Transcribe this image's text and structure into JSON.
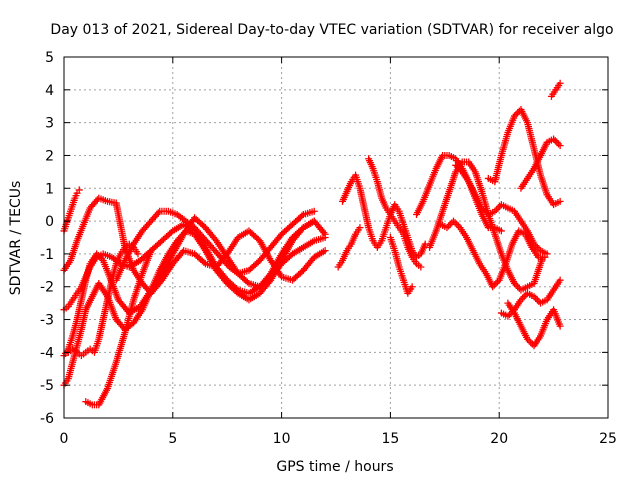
{
  "chart_data": {
    "type": "scatter",
    "title": "Day 013 of 2021, Sidereal Day-to-day VTEC variation (SDTVAR) for receiver algo",
    "xlabel": "GPS time / hours",
    "ylabel": "SDTVAR / TECUs",
    "xlim": [
      0,
      25
    ],
    "ylim": [
      -6,
      5
    ],
    "xticks": [
      0,
      5,
      10,
      15,
      20,
      25
    ],
    "yticks": [
      -6,
      -5,
      -4,
      -3,
      -2,
      -1,
      0,
      1,
      2,
      3,
      4,
      5
    ],
    "grid": true,
    "legend": "none",
    "marker": "+",
    "color": "#ff0000",
    "series": [
      {
        "x": [
          0.0,
          0.2,
          0.4,
          0.6,
          0.8,
          1.0,
          1.2,
          1.5,
          1.8,
          2.2,
          2.6,
          3.0,
          3.5,
          4.0,
          4.5,
          5.0,
          5.5,
          6.0,
          6.5,
          7.0,
          7.5,
          8.0,
          8.5,
          9.0,
          9.5,
          10.0,
          10.5,
          11.0,
          11.5,
          12.0
        ],
        "y": [
          -2.7,
          -2.6,
          -2.4,
          -2.2,
          -2.0,
          -1.7,
          -1.4,
          -1.1,
          -1.0,
          -1.1,
          -1.3,
          -1.4,
          -1.2,
          -0.9,
          -0.6,
          -0.3,
          -0.1,
          -0.3,
          -0.8,
          -1.4,
          -1.8,
          -2.1,
          -2.2,
          -2.0,
          -1.7,
          -1.3,
          -1.0,
          -0.8,
          -0.6,
          -0.5
        ]
      },
      {
        "x": [
          0.0,
          0.3,
          0.6,
          0.9,
          1.2,
          1.6,
          2.0,
          2.4,
          2.8,
          3.2,
          3.6,
          4.0,
          4.5,
          5.0,
          5.5,
          6.0,
          6.5,
          7.0,
          7.5,
          8.0,
          8.5,
          9.0,
          9.5,
          10.0,
          10.5,
          11.0,
          11.5,
          12.0
        ],
        "y": [
          -1.5,
          -1.2,
          -0.6,
          -0.1,
          0.4,
          0.7,
          0.6,
          0.55,
          -0.8,
          -1.5,
          -1.9,
          -2.2,
          -1.8,
          -1.3,
          -0.9,
          -1.0,
          -1.3,
          -1.4,
          -1.0,
          -0.5,
          -0.3,
          -0.6,
          -1.2,
          -1.7,
          -1.8,
          -1.5,
          -1.1,
          -0.9
        ]
      },
      {
        "x": [
          0.0,
          0.2,
          0.4,
          0.6,
          0.8,
          1.0,
          1.2,
          1.5,
          1.8,
          2.1,
          2.5,
          3.0,
          3.5,
          4.0,
          4.5,
          5.0,
          5.5,
          6.0,
          6.5,
          7.0,
          7.5,
          8.0,
          8.5,
          9.0,
          9.5,
          10.0,
          10.5,
          11.0,
          11.5,
          12.0
        ],
        "y": [
          -4.1,
          -3.9,
          -3.5,
          -3.0,
          -2.4,
          -1.8,
          -1.3,
          -1.0,
          -1.2,
          -1.7,
          -2.4,
          -2.8,
          -2.6,
          -2.1,
          -1.6,
          -1.0,
          -0.4,
          0.1,
          -0.2,
          -0.6,
          -1.1,
          -1.6,
          -1.9,
          -2.0,
          -1.6,
          -1.0,
          -0.5,
          -0.2,
          0.0,
          -0.4
        ]
      },
      {
        "x": [
          0.0,
          0.2,
          0.4,
          0.6,
          0.8,
          1.0,
          1.3,
          1.6,
          2.0,
          2.4,
          2.8,
          3.2,
          3.6,
          4.0,
          4.4,
          4.8,
          5.2,
          5.6,
          6.0,
          6.5,
          7.0,
          7.5,
          8.0,
          8.5,
          9.0,
          9.5,
          10.0,
          10.5,
          11.0,
          11.5
        ],
        "y": [
          -5.0,
          -4.8,
          -4.3,
          -3.8,
          -3.3,
          -2.7,
          -2.3,
          -1.9,
          -2.3,
          -3.0,
          -3.3,
          -3.1,
          -2.7,
          -2.1,
          -1.5,
          -1.0,
          -0.6,
          -0.3,
          -0.4,
          -0.9,
          -1.5,
          -1.9,
          -2.2,
          -2.4,
          -2.2,
          -1.8,
          -1.2,
          -0.6,
          -0.2,
          0.0
        ]
      },
      {
        "x": [
          0.0,
          0.1,
          0.2,
          0.3,
          0.4,
          0.5,
          0.6,
          0.7
        ],
        "y": [
          -0.3,
          -0.1,
          0.1,
          0.3,
          0.5,
          0.7,
          0.85,
          0.95
        ]
      },
      {
        "x": [
          0.2,
          0.4,
          0.6,
          0.8,
          1.0,
          1.2,
          1.4,
          1.6,
          1.8,
          2.0,
          2.2,
          2.4,
          2.6,
          2.8,
          3.0,
          3.2,
          3.4
        ],
        "y": [
          -4.0,
          -3.9,
          -4.0,
          -4.1,
          -4.0,
          -3.9,
          -4.0,
          -3.6,
          -3.0,
          -2.4,
          -1.8,
          -1.3,
          -1.0,
          -0.8,
          -0.7,
          -0.8,
          -1.0
        ]
      },
      {
        "x": [
          1.0,
          1.3,
          1.6,
          2.0,
          2.4,
          2.8,
          3.2,
          3.6,
          4.0
        ],
        "y": [
          -5.5,
          -5.6,
          -5.6,
          -5.1,
          -4.3,
          -3.4,
          -2.4,
          -1.6,
          -0.9
        ]
      },
      {
        "x": [
          2.4,
          2.8,
          3.2,
          3.6,
          4.0,
          4.4,
          4.8,
          5.2,
          5.6,
          6.0,
          6.4,
          6.8,
          7.2,
          7.6,
          8.0,
          8.5,
          9.0,
          9.5,
          10.0,
          10.5,
          11.0,
          11.5
        ],
        "y": [
          -1.8,
          -1.2,
          -0.7,
          -0.3,
          0.0,
          0.3,
          0.3,
          0.2,
          0.0,
          -0.2,
          -0.5,
          -0.8,
          -1.1,
          -1.4,
          -1.6,
          -1.5,
          -1.2,
          -0.8,
          -0.4,
          -0.1,
          0.2,
          0.3
        ]
      },
      {
        "x": [
          12.8,
          13.0,
          13.2,
          13.4,
          13.6,
          13.8,
          14.0,
          14.2,
          14.4,
          14.6,
          14.8,
          15.0,
          15.2,
          15.4,
          15.6,
          15.8,
          16.0,
          16.2,
          16.4,
          16.6
        ],
        "y": [
          0.6,
          0.9,
          1.2,
          1.4,
          1.0,
          0.4,
          -0.2,
          -0.6,
          -0.8,
          -0.6,
          -0.2,
          0.2,
          0.5,
          0.3,
          -0.1,
          -0.5,
          -0.9,
          -1.1,
          -1.0,
          -0.7
        ]
      },
      {
        "x": [
          12.6,
          12.8,
          13.0,
          13.2,
          13.4,
          13.6
        ],
        "y": [
          -1.4,
          -1.2,
          -0.9,
          -0.7,
          -0.4,
          -0.2
        ]
      },
      {
        "x": [
          14.0,
          14.2,
          14.4,
          14.6,
          14.8,
          15.0,
          15.2,
          15.4,
          15.6,
          15.8,
          16.0,
          16.2,
          16.4
        ],
        "y": [
          1.9,
          1.6,
          1.2,
          0.7,
          0.4,
          0.2,
          0.0,
          -0.2,
          -0.4,
          -0.8,
          -1.1,
          -1.3,
          -1.4
        ]
      },
      {
        "x": [
          15.0,
          15.2,
          15.4,
          15.6,
          15.8,
          16.0
        ],
        "y": [
          -0.5,
          -0.9,
          -1.4,
          -1.8,
          -2.2,
          -2.0
        ]
      },
      {
        "x": [
          16.2,
          16.5,
          16.8,
          17.1,
          17.4,
          17.7,
          18.0,
          18.3,
          18.6,
          18.9,
          19.2,
          19.5,
          19.8,
          20.1
        ],
        "y": [
          0.2,
          0.6,
          1.1,
          1.6,
          2.0,
          2.0,
          1.9,
          1.6,
          1.2,
          0.7,
          0.2,
          -0.2,
          -0.2,
          -0.3
        ]
      },
      {
        "x": [
          16.8,
          17.1,
          17.4,
          17.7,
          18.0,
          18.3,
          18.6,
          18.9,
          19.2,
          19.5,
          19.8,
          20.1,
          20.4,
          20.7,
          21.0,
          21.3,
          21.6,
          22.0
        ],
        "y": [
          -0.8,
          -0.3,
          0.3,
          0.9,
          1.5,
          1.8,
          1.8,
          1.5,
          0.9,
          0.2,
          -0.4,
          -1.0,
          -1.5,
          -1.9,
          -2.1,
          -2.0,
          -1.9,
          -1.1
        ]
      },
      {
        "x": [
          17.3,
          17.6,
          17.9,
          18.2,
          18.5,
          18.8,
          19.1,
          19.4,
          19.7,
          20.0,
          20.3,
          20.6,
          20.9,
          21.2,
          21.5,
          21.8,
          22.1
        ],
        "y": [
          -0.1,
          -0.2,
          0.0,
          -0.2,
          -0.5,
          -0.9,
          -1.3,
          -1.6,
          -2.0,
          -1.8,
          -1.3,
          -0.7,
          -0.3,
          -0.4,
          -0.8,
          -1.1,
          -1.1
        ]
      },
      {
        "x": [
          18.0,
          18.3,
          18.6,
          18.9,
          19.2,
          19.5,
          19.8,
          20.1,
          20.4,
          20.7,
          21.0,
          21.3,
          21.6,
          21.9,
          22.2
        ],
        "y": [
          1.7,
          1.5,
          1.2,
          0.8,
          0.4,
          0.2,
          0.3,
          0.5,
          0.4,
          0.3,
          0.0,
          -0.3,
          -0.7,
          -0.9,
          -1.0
        ]
      },
      {
        "x": [
          19.5,
          19.8,
          20.1,
          20.4,
          20.7,
          21.0,
          21.3,
          21.6,
          21.9,
          22.2,
          22.5,
          22.8
        ],
        "y": [
          1.3,
          1.2,
          2.0,
          2.7,
          3.2,
          3.4,
          3.0,
          2.2,
          1.4,
          0.8,
          0.5,
          0.6
        ]
      },
      {
        "x": [
          20.1,
          20.4,
          20.7,
          21.0,
          21.3,
          21.6,
          21.9,
          22.2,
          22.5,
          22.8
        ],
        "y": [
          -2.8,
          -2.9,
          -2.7,
          -2.4,
          -2.2,
          -2.3,
          -2.5,
          -2.4,
          -2.1,
          -1.8
        ]
      },
      {
        "x": [
          20.4,
          20.7,
          21.0,
          21.3,
          21.6,
          21.9,
          22.2,
          22.5,
          22.8
        ],
        "y": [
          -2.5,
          -2.8,
          -3.2,
          -3.6,
          -3.8,
          -3.5,
          -3.0,
          -2.7,
          -3.2
        ]
      },
      {
        "x": [
          21.0,
          21.3,
          21.6,
          21.9,
          22.2,
          22.5,
          22.8
        ],
        "y": [
          1.0,
          1.3,
          1.6,
          2.0,
          2.4,
          2.5,
          2.3
        ]
      },
      {
        "x": [
          22.4,
          22.6,
          22.8
        ],
        "y": [
          3.8,
          4.0,
          4.2
        ]
      }
    ]
  }
}
